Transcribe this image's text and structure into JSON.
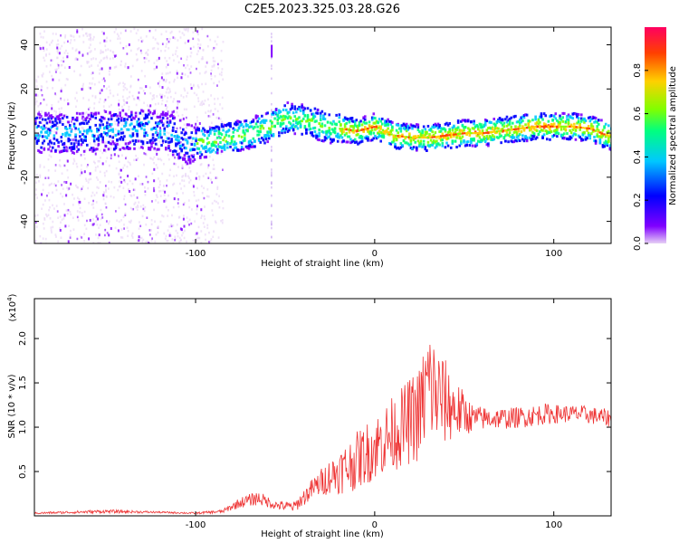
{
  "title": "C2E5.2023.325.03.28.G26",
  "chart_data": [
    {
      "type": "heatmap",
      "xlabel": "Height of straight line (km)",
      "ylabel": "Frequency (Hz)",
      "xlim": [
        -190,
        132
      ],
      "ylim": [
        -50,
        48
      ],
      "xticks": [
        -100,
        0,
        100
      ],
      "xtick_labels": [
        "-100",
        "0",
        "100"
      ],
      "yticks": [
        -40,
        -20,
        0,
        20,
        40
      ],
      "ytick_labels": [
        "-40",
        "-20",
        "0",
        "20",
        "40"
      ],
      "grid": false,
      "ridge": {
        "x": [
          -190,
          -170,
          -150,
          -130,
          -115,
          -105,
          -95,
          -80,
          -70,
          -60,
          -50,
          -40,
          -30,
          -20,
          -10,
          0,
          10,
          20,
          30,
          40,
          50,
          60,
          70,
          80,
          90,
          100,
          110,
          120,
          132
        ],
        "y": [
          0,
          0,
          1,
          2,
          0,
          -5,
          -4,
          -2,
          0,
          3,
          7,
          6,
          3,
          2,
          1,
          3,
          -1,
          -2,
          -2,
          -1,
          0,
          0,
          1,
          2,
          3,
          3,
          3,
          2,
          -2
        ]
      },
      "colorbar": {
        "label": "Normalized spectral amplitude",
        "range": [
          0,
          1
        ],
        "ticks": [
          0.0,
          0.2,
          0.4,
          0.6,
          0.8
        ],
        "tick_labels": [
          "0.0",
          "0.2",
          "0.4",
          "0.6",
          "0.8"
        ],
        "colors": [
          "#e6d0f5",
          "#8000ff",
          "#0000ff",
          "#00c8ff",
          "#00ff80",
          "#80ff00",
          "#ffd000",
          "#ff4000",
          "#ff0060"
        ]
      }
    },
    {
      "type": "line",
      "xlabel": "Height of straight line (km)",
      "ylabel": "SNR (10 * v/v)",
      "yscale_label": "(x10",
      "yscale_exp": "4",
      "yscale_close": ")",
      "xlim": [
        -190,
        132
      ],
      "ylim": [
        0.0,
        2.45
      ],
      "xticks": [
        -100,
        0,
        100
      ],
      "xtick_labels": [
        "-100",
        "0",
        "100"
      ],
      "yticks": [
        0.5,
        1.0,
        1.5,
        2.0
      ],
      "ytick_labels": [
        "0.5",
        "1.0",
        "1.5",
        "2.0"
      ],
      "grid": false,
      "color": "#ee3333",
      "series": [
        {
          "x": [
            -190,
            -150,
            -120,
            -100,
            -85,
            -75,
            -65,
            -55,
            -45,
            -35,
            -25,
            -15,
            -5,
            5,
            15,
            25,
            30,
            35,
            45,
            55,
            65,
            75,
            85,
            95,
            105,
            115,
            125,
            132
          ],
          "y": [
            0.03,
            0.05,
            0.04,
            0.03,
            0.05,
            0.15,
            0.2,
            0.12,
            0.1,
            0.3,
            0.45,
            0.55,
            0.7,
            0.85,
            1.0,
            1.15,
            1.5,
            1.35,
            1.2,
            1.1,
            1.1,
            1.1,
            1.12,
            1.15,
            1.15,
            1.15,
            1.12,
            1.1
          ],
          "spread": [
            0.01,
            0.02,
            0.01,
            0.01,
            0.02,
            0.06,
            0.08,
            0.05,
            0.06,
            0.12,
            0.2,
            0.3,
            0.35,
            0.4,
            0.45,
            0.55,
            0.7,
            0.6,
            0.35,
            0.15,
            0.12,
            0.12,
            0.12,
            0.12,
            0.1,
            0.1,
            0.1,
            0.1
          ]
        }
      ]
    }
  ]
}
